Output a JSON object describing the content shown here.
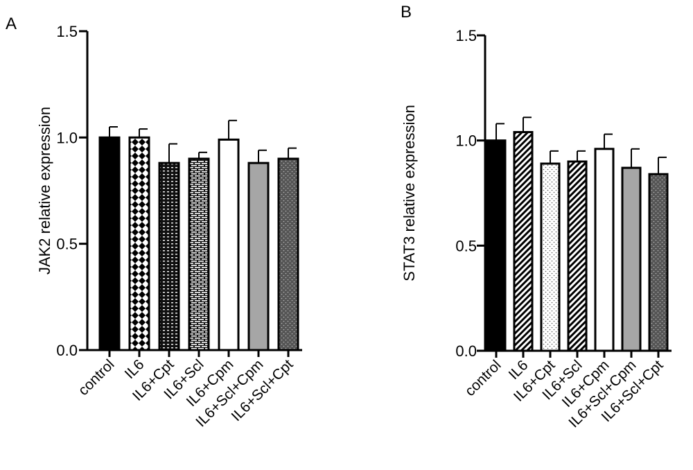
{
  "chart_data": [
    {
      "type": "bar",
      "panel": "A",
      "ylabel": "JAK2 relative expression",
      "ylim": [
        0,
        1.5
      ],
      "yticks": [
        "0.0",
        "0.5",
        "1.0",
        "1.5"
      ],
      "categories": [
        "control",
        "IL6",
        "IL6+Cpt",
        "IL6+Scl",
        "IL6+Cpm",
        "IL6+Scl+Cpm",
        "IL6+Scl+Cpt"
      ],
      "values": [
        1.0,
        1.0,
        0.88,
        0.9,
        0.99,
        0.88,
        0.9
      ],
      "errors": [
        0.05,
        0.04,
        0.09,
        0.03,
        0.09,
        0.06,
        0.05
      ],
      "fills": [
        "solid-black",
        "checker",
        "dashes",
        "bricks",
        "white",
        "gray",
        "dark-dots"
      ]
    },
    {
      "type": "bar",
      "panel": "B",
      "ylabel": "STAT3 relative expression",
      "ylim": [
        0,
        1.5
      ],
      "yticks": [
        "0.0",
        "0.5",
        "1.0",
        "1.5"
      ],
      "categories": [
        "control",
        "IL6",
        "IL6+Cpt",
        "IL6+Scl",
        "IL6+Cpm",
        "IL6+Scl+Cpm",
        "IL6+Scl+Cpt"
      ],
      "values": [
        1.0,
        1.04,
        0.89,
        0.9,
        0.96,
        0.87,
        0.84
      ],
      "errors": [
        0.08,
        0.07,
        0.06,
        0.05,
        0.07,
        0.09,
        0.08
      ],
      "fills": [
        "solid-black",
        "diag-hatch",
        "white-dots",
        "diag-hatch",
        "white",
        "gray",
        "dark-dots"
      ]
    }
  ]
}
